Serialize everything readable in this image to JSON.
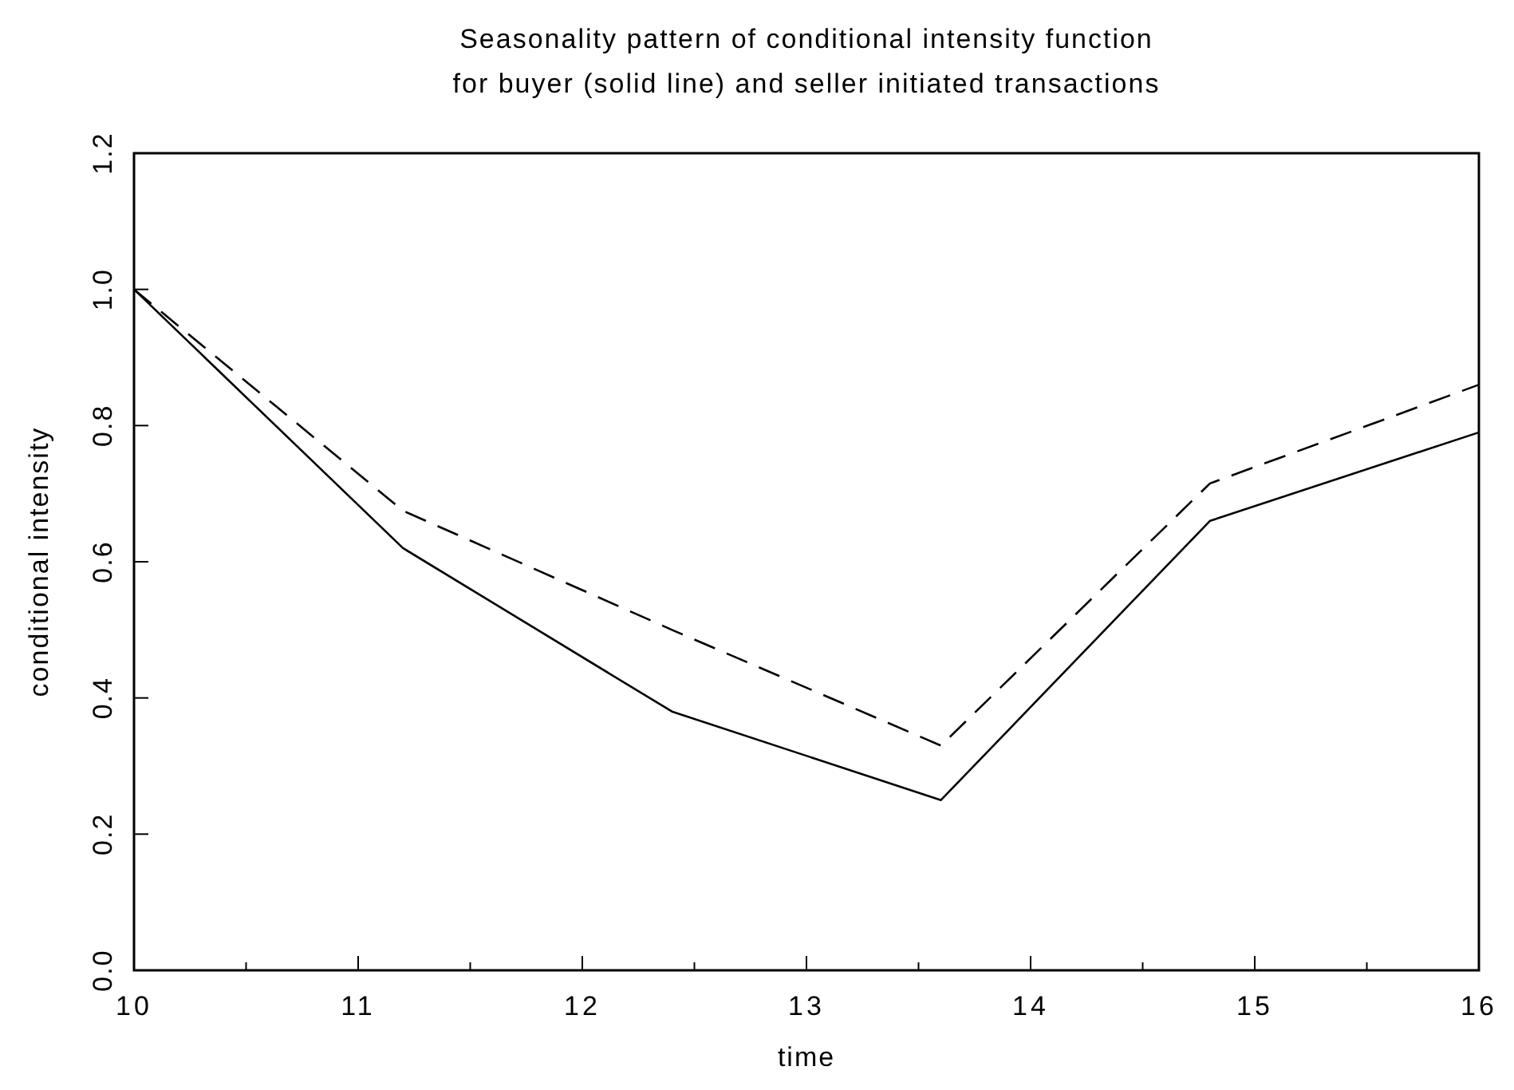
{
  "chart_data": {
    "type": "line",
    "title": "Seasonality pattern of conditional intensity function",
    "subtitle": "for buyer (solid line) and seller initiated transactions",
    "xlabel": "time",
    "ylabel": "conditional intensity",
    "x": [
      10,
      11.2,
      12.4,
      13.6,
      14.8,
      16
    ],
    "series": [
      {
        "color": "#000000",
        "line_style": "solid",
        "values": [
          1.0,
          0.62,
          0.38,
          0.25,
          0.66,
          0.79
        ]
      },
      {
        "color": "#000000",
        "line_style": "dashed",
        "values": [
          1.0,
          0.675,
          0.5,
          0.33,
          0.715,
          0.86
        ]
      }
    ],
    "xlim": [
      10,
      16
    ],
    "xticks": [
      {
        "value": 10,
        "label": "10"
      },
      {
        "value": 10.5,
        "label": null
      },
      11,
      {
        "value": 11.5,
        "label": null
      },
      12,
      {
        "value": 12.5,
        "label": null
      },
      13,
      {
        "value": 13.5,
        "label": null
      },
      14,
      {
        "value": 14.5,
        "label": null
      },
      15,
      {
        "value": 15.5,
        "label": null
      },
      16
    ],
    "ylim": [
      0,
      1.2
    ],
    "yticks": [
      {
        "value": 0,
        "label": "0.0"
      },
      0.2,
      0.4,
      0.6,
      0.8,
      {
        "value": 1,
        "label": "1.0"
      },
      1.2
    ],
    "grid": false,
    "marker": "none"
  }
}
